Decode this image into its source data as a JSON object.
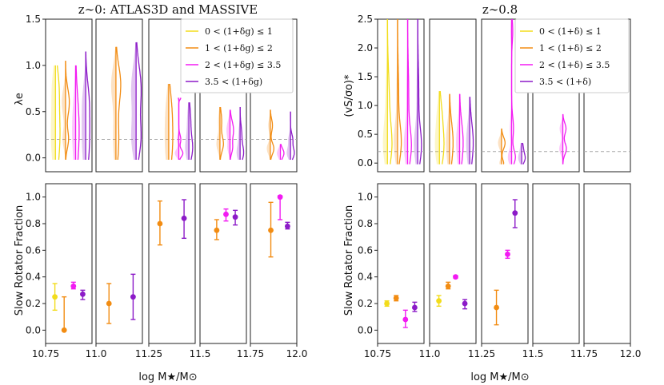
{
  "figure": {
    "x_axis_label": "log M★/M⊙",
    "x_ticks": [
      "10.75",
      "11.0",
      "11.25",
      "11.5",
      "11.75",
      "12.0"
    ],
    "bin_edges": [
      10.75,
      11.0,
      11.25,
      11.5,
      11.75,
      12.0
    ]
  },
  "colors": {
    "bin1": "#f2dc1b",
    "bin2": "#f28c12",
    "bin3": "#f21bf2",
    "bin4": "#8c1bc8"
  },
  "chart_data": [
    {
      "id": "left",
      "title": "z∼0: ATLAS3D and MASSIVE",
      "top": {
        "type": "violin",
        "ylabel": "λe",
        "ylim": [
          -0.15,
          1.5
        ],
        "yticks": [
          "0.0",
          "0.5",
          "1.0",
          "1.5"
        ],
        "reference_line": 0.2,
        "legend": [
          "0 < (1+δg) ≤ 1",
          "1 < (1+δg) ≤ 2",
          "2 < (1+δg) ≤ 3.5",
          "3.5 < (1+δg)"
        ]
      },
      "bottom": {
        "type": "errorbar",
        "ylabel": "Slow Rotator Fraction",
        "ylim": [
          -0.1,
          1.1
        ],
        "yticks": [
          "0.0",
          "0.2",
          "0.4",
          "0.6",
          "0.8",
          "1.0"
        ],
        "series": [
          {
            "name": "0 < (1+δg) ≤ 1",
            "x": [
              10.8
            ],
            "y": [
              0.25
            ],
            "lo": [
              0.15
            ],
            "hi": [
              0.35
            ]
          },
          {
            "name": "1 < (1+δg) ≤ 2",
            "x": [
              10.85,
              11.07,
              11.31,
              11.59,
              11.86
            ],
            "y": [
              0.0,
              0.2,
              0.8,
              0.75,
              0.75
            ],
            "lo": [
              0.0,
              0.05,
              0.64,
              0.68,
              0.55
            ],
            "hi": [
              0.25,
              0.35,
              0.97,
              0.83,
              0.96
            ]
          },
          {
            "name": "2 < (1+δg) ≤ 3.5",
            "x": [
              10.9,
              11.64,
              11.91
            ],
            "y": [
              0.33,
              0.87,
              1.0
            ],
            "lo": [
              0.31,
              0.82,
              0.83
            ],
            "hi": [
              0.36,
              0.91,
              1.01
            ]
          },
          {
            "name": "3.5 < (1+δg)",
            "x": [
              10.95,
              11.2,
              11.44,
              11.69,
              11.95
            ],
            "y": [
              0.27,
              0.25,
              0.84,
              0.85,
              0.78
            ],
            "lo": [
              0.23,
              0.08,
              0.69,
              0.79,
              0.76
            ],
            "hi": [
              0.3,
              0.42,
              0.98,
              0.9,
              0.81
            ]
          }
        ]
      }
    },
    {
      "id": "right",
      "title": "z∼0.8",
      "top": {
        "type": "violin",
        "ylabel": "(vS/σo)*",
        "ylim": [
          -0.15,
          2.5
        ],
        "yticks": [
          "0.0",
          "0.5",
          "1.0",
          "1.5",
          "2.0",
          "2.5"
        ],
        "reference_line": 0.2,
        "legend": [
          "0 < (1+δ) ≤ 1",
          "1 < (1+δ) ≤ 2",
          "2 < (1+δ) ≤ 3.5",
          "3.5 < (1+δ)"
        ]
      },
      "bottom": {
        "type": "errorbar",
        "ylabel": "Slow Rotator Fraction",
        "ylim": [
          -0.1,
          1.1
        ],
        "yticks": [
          "0.0",
          "0.2",
          "0.4",
          "0.6",
          "0.8",
          "1.0"
        ],
        "series": [
          {
            "name": "0 < (1+δ) ≤ 1",
            "x": [
              10.8,
              11.05
            ],
            "y": [
              0.2,
              0.22
            ],
            "lo": [
              0.18,
              0.18
            ],
            "hi": [
              0.22,
              0.26
            ]
          },
          {
            "name": "1 < (1+δ) ≤ 2",
            "x": [
              10.85,
              11.1,
              11.33
            ],
            "y": [
              0.24,
              0.33,
              0.17
            ],
            "lo": [
              0.22,
              0.31,
              0.04
            ],
            "hi": [
              0.26,
              0.36,
              0.3
            ]
          },
          {
            "name": "2 < (1+δ) ≤ 3.5",
            "x": [
              10.9,
              11.14,
              11.39
            ],
            "y": [
              0.08,
              0.4,
              0.57
            ],
            "lo": [
              0.02,
              0.39,
              0.54
            ],
            "hi": [
              0.15,
              0.41,
              0.6
            ]
          },
          {
            "name": "3.5 < (1+δ)",
            "x": [
              10.95,
              11.19,
              11.43
            ],
            "y": [
              0.17,
              0.2,
              0.88
            ],
            "lo": [
              0.14,
              0.16,
              0.77
            ],
            "hi": [
              0.21,
              0.23,
              0.98
            ]
          }
        ]
      }
    }
  ]
}
